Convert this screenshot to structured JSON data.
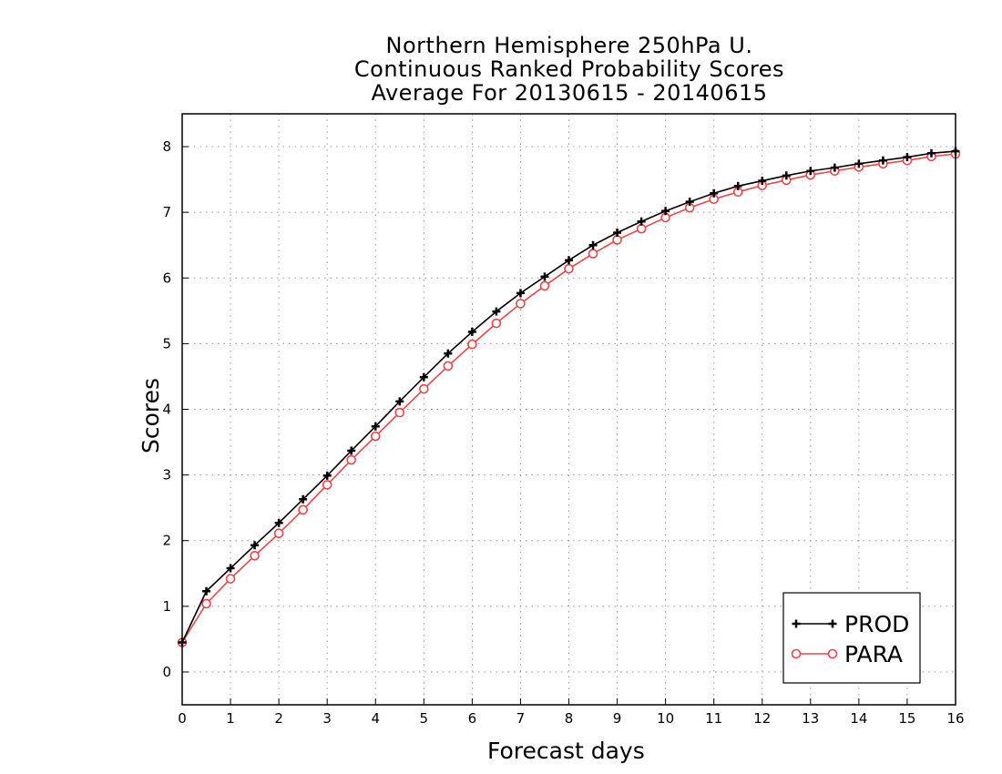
{
  "chart_data": {
    "type": "line",
    "title": [
      "Northern Hemisphere 250hPa U.",
      "Continuous Ranked Probability Scores",
      "Average For 20130615 - 20140615"
    ],
    "xlabel": "Forecast days",
    "ylabel": "Scores",
    "xlim": [
      0,
      16
    ],
    "ylim": [
      -0.5,
      8.5
    ],
    "xticks": [
      0,
      1,
      2,
      3,
      4,
      5,
      6,
      7,
      8,
      9,
      10,
      11,
      12,
      13,
      14,
      15,
      16
    ],
    "yticks": [
      0,
      1,
      2,
      3,
      4,
      5,
      6,
      7,
      8
    ],
    "grid": true,
    "legend_position": "bottom-right",
    "x": [
      0,
      0.5,
      1,
      1.5,
      2,
      2.5,
      3,
      3.5,
      4,
      4.5,
      5,
      5.5,
      6,
      6.5,
      7,
      7.5,
      8,
      8.5,
      9,
      9.5,
      10,
      10.5,
      11,
      11.5,
      12,
      12.5,
      13,
      13.5,
      14,
      14.5,
      15,
      15.5,
      16
    ],
    "series": [
      {
        "name": "PROD",
        "color": "#000000",
        "marker": "plus",
        "values": [
          0.45,
          1.23,
          1.58,
          1.93,
          2.27,
          2.63,
          2.99,
          3.37,
          3.74,
          4.12,
          4.49,
          4.85,
          5.18,
          5.49,
          5.77,
          6.02,
          6.27,
          6.5,
          6.69,
          6.86,
          7.02,
          7.16,
          7.29,
          7.4,
          7.48,
          7.56,
          7.63,
          7.68,
          7.74,
          7.79,
          7.84,
          7.9,
          7.93
        ]
      },
      {
        "name": "PARA",
        "color": "#e8474a",
        "marker": "circle",
        "values": [
          0.45,
          1.04,
          1.42,
          1.77,
          2.11,
          2.47,
          2.85,
          3.23,
          3.59,
          3.95,
          4.31,
          4.66,
          4.99,
          5.31,
          5.61,
          5.88,
          6.14,
          6.37,
          6.58,
          6.75,
          6.92,
          7.07,
          7.2,
          7.31,
          7.41,
          7.49,
          7.57,
          7.63,
          7.69,
          7.74,
          7.79,
          7.85,
          7.89
        ]
      }
    ]
  }
}
